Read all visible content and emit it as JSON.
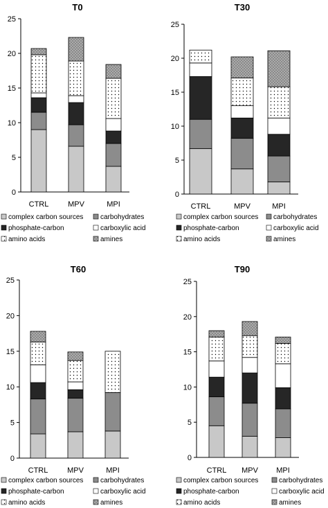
{
  "legend_labels": [
    "complex carbon sources",
    "carbohydrates",
    "phosphate-carbon",
    "carboxylic acid",
    "amino acids",
    "amines"
  ],
  "chart_data": [
    {
      "type": "bar",
      "title": "T0",
      "ylim": [
        0,
        25
      ],
      "yticks": [
        0,
        5,
        10,
        15,
        20,
        25
      ],
      "categories": [
        "CTRL",
        "MPV",
        "MPI"
      ],
      "series": [
        {
          "name": "complex carbon sources",
          "values": [
            9.0,
            6.6,
            3.7
          ]
        },
        {
          "name": "carbohydrates",
          "values": [
            2.5,
            3.1,
            3.3
          ]
        },
        {
          "name": "phosphate-carbon",
          "values": [
            2.1,
            3.2,
            1.8
          ]
        },
        {
          "name": "carboxylic acid",
          "values": [
            0.7,
            1.0,
            1.8
          ]
        },
        {
          "name": "amino acids",
          "values": [
            5.5,
            5.0,
            5.8
          ]
        },
        {
          "name": "amines",
          "values": [
            0.9,
            3.4,
            2.0
          ]
        }
      ],
      "legend": "bottom",
      "grid": false
    },
    {
      "type": "bar",
      "title": "T30",
      "ylim": [
        0,
        25
      ],
      "yticks": [
        0,
        5,
        10,
        15,
        20,
        25
      ],
      "categories": [
        "CTRL",
        "MPV",
        "MPI"
      ],
      "series": [
        {
          "name": "complex carbon sources",
          "values": [
            6.7,
            3.7,
            1.8
          ]
        },
        {
          "name": "carbohydrates",
          "values": [
            4.3,
            4.5,
            3.8
          ]
        },
        {
          "name": "phosphate-carbon",
          "values": [
            6.3,
            3.0,
            3.2
          ]
        },
        {
          "name": "carboxylic acid",
          "values": [
            2.0,
            1.8,
            2.4
          ]
        },
        {
          "name": "amino acids",
          "values": [
            1.9,
            4.1,
            4.6
          ]
        },
        {
          "name": "amines",
          "values": [
            0.0,
            3.1,
            5.3
          ]
        }
      ],
      "legend": "bottom",
      "grid": false
    },
    {
      "type": "bar",
      "title": "T60",
      "ylim": [
        0,
        25
      ],
      "yticks": [
        0,
        5,
        10,
        15,
        20,
        25
      ],
      "categories": [
        "CTRL",
        "MPV",
        "MPI"
      ],
      "series": [
        {
          "name": "complex carbon sources",
          "values": [
            3.4,
            3.7,
            3.8
          ]
        },
        {
          "name": "carbohydrates",
          "values": [
            4.9,
            4.7,
            5.4
          ]
        },
        {
          "name": "phosphate-carbon",
          "values": [
            2.3,
            1.2,
            0.0
          ]
        },
        {
          "name": "carboxylic acid",
          "values": [
            2.5,
            1.1,
            0.0
          ]
        },
        {
          "name": "amino acids",
          "values": [
            3.2,
            3.0,
            5.8
          ]
        },
        {
          "name": "amines",
          "values": [
            1.5,
            1.2,
            0.0
          ]
        }
      ],
      "legend": "bottom",
      "grid": false
    },
    {
      "type": "bar",
      "title": "T90",
      "ylim": [
        0,
        25
      ],
      "yticks": [
        0,
        5,
        10,
        15,
        20,
        25
      ],
      "categories": [
        "CTRL",
        "MPV",
        "MPI"
      ],
      "series": [
        {
          "name": "complex carbon sources",
          "values": [
            4.5,
            3.0,
            2.8
          ]
        },
        {
          "name": "carbohydrates",
          "values": [
            4.1,
            4.7,
            4.1
          ]
        },
        {
          "name": "phosphate-carbon",
          "values": [
            2.8,
            4.3,
            3.0
          ]
        },
        {
          "name": "carboxylic acid",
          "values": [
            2.3,
            2.2,
            3.4
          ]
        },
        {
          "name": "amino acids",
          "values": [
            3.4,
            3.1,
            2.9
          ]
        },
        {
          "name": "amines",
          "values": [
            0.9,
            2.0,
            0.9
          ]
        }
      ],
      "legend": "bottom",
      "grid": false
    }
  ],
  "colors": {
    "complex carbon sources": "#c8c8c8",
    "carbohydrates": "#8c8c8c",
    "phosphate-carbon": "#262626",
    "carboxylic acid": "#ffffff",
    "amino acids": "#ffffff",
    "amines": "#8f8f8f"
  }
}
